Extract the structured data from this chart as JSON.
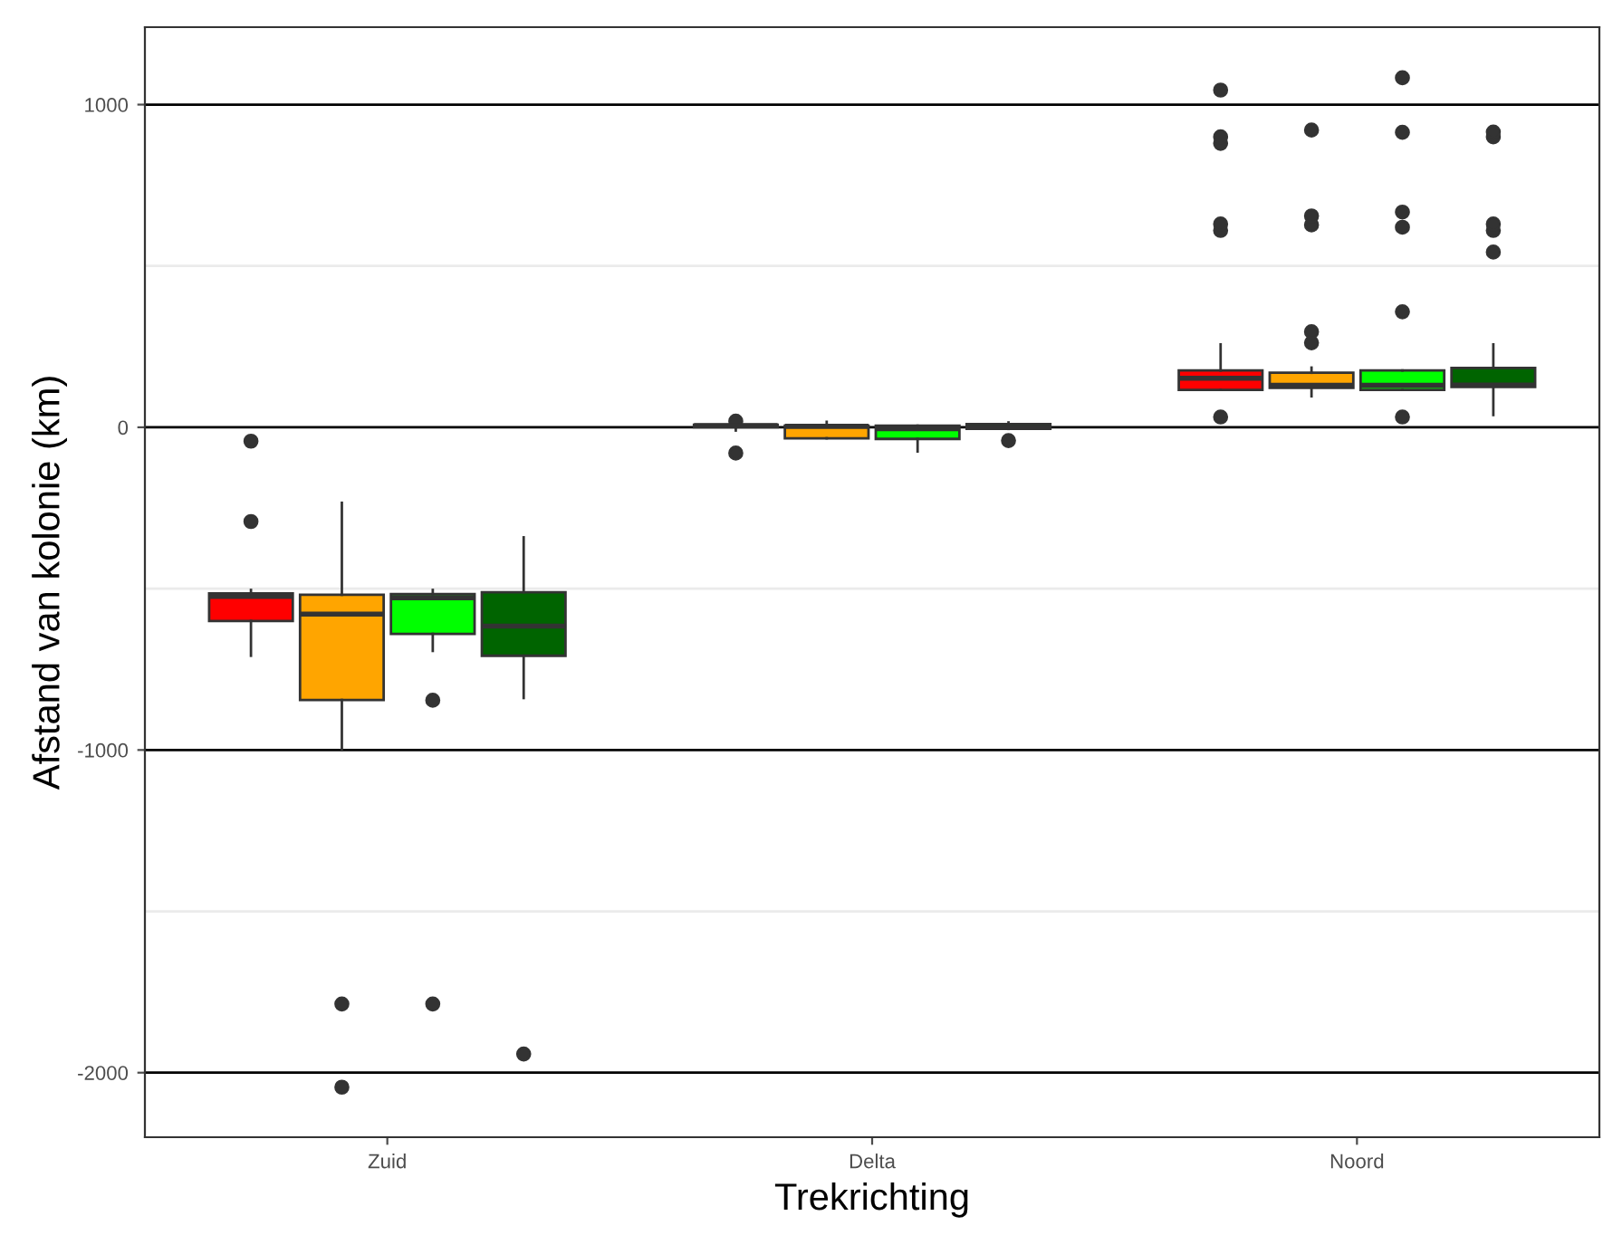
{
  "chart_data": {
    "type": "box",
    "xlabel": "Trekrichting",
    "ylabel": "Afstand van kolonie (km)",
    "categories": [
      "Zuid",
      "Delta",
      "Noord"
    ],
    "ylim": [
      -2200,
      1240
    ],
    "yticks": [
      {
        "value": -2000,
        "label": "-2000"
      },
      {
        "value": -1500,
        "label": null
      },
      {
        "value": -1000,
        "label": "-1000"
      },
      {
        "value": -500,
        "label": null
      },
      0,
      {
        "value": 500,
        "label": null
      },
      1000
    ],
    "grid": "y",
    "series": [
      {
        "color": "#ff0000",
        "boxes": [
          {
            "low": -708,
            "q1": -600,
            "median": -524,
            "q3": -515,
            "high": -504,
            "outliers": [
              -43,
              -292
            ]
          },
          {
            "low": -10,
            "q1": 0,
            "median": 5,
            "q3": 8,
            "high": 12,
            "outliers": [
              19,
              -80
            ]
          },
          {
            "low": 116,
            "q1": 116,
            "median": 152,
            "q3": 176,
            "high": 257,
            "outliers": [
              32,
              610,
              630,
              880,
              900,
              1045
            ]
          }
        ]
      },
      {
        "color": "#ffa500",
        "boxes": [
          {
            "low": -1000,
            "q1": -845,
            "median": -579,
            "q3": -519,
            "high": -234,
            "outliers": [
              -1787,
              -2045
            ]
          },
          {
            "low": -34,
            "q1": -34,
            "median": 3,
            "q3": 5,
            "high": 17
          },
          {
            "low": 96,
            "q1": 122,
            "median": 130,
            "q3": 169,
            "high": 185,
            "outliers": [
              262,
              296,
              627,
              655,
              921
            ]
          }
        ]
      },
      {
        "color": "#00ff00",
        "boxes": [
          {
            "low": -693,
            "q1": -640,
            "median": -528,
            "q3": -517,
            "high": -504,
            "outliers": [
              -846,
              -1787
            ]
          },
          {
            "low": -75,
            "q1": -36,
            "median": -4,
            "q3": 5,
            "high": 5
          },
          {
            "low": 116,
            "q1": 116,
            "median": 130,
            "q3": 176,
            "high": 176,
            "outliers": [
              32,
              358,
              620,
              667,
              914,
              1083
            ]
          }
        ]
      },
      {
        "color": "#006400",
        "boxes": [
          {
            "low": -839,
            "q1": -708,
            "median": -616,
            "q3": -511,
            "high": -341,
            "outliers": [
              -1942
            ]
          },
          {
            "low": -5,
            "q1": -5,
            "median": 0,
            "q3": 10,
            "high": 15,
            "outliers": [
              -41
            ]
          },
          {
            "low": 38,
            "q1": 125,
            "median": 131,
            "q3": 184,
            "high": 257,
            "outliers": [
              543,
              610,
              630,
              900,
              915
            ]
          }
        ]
      }
    ]
  }
}
